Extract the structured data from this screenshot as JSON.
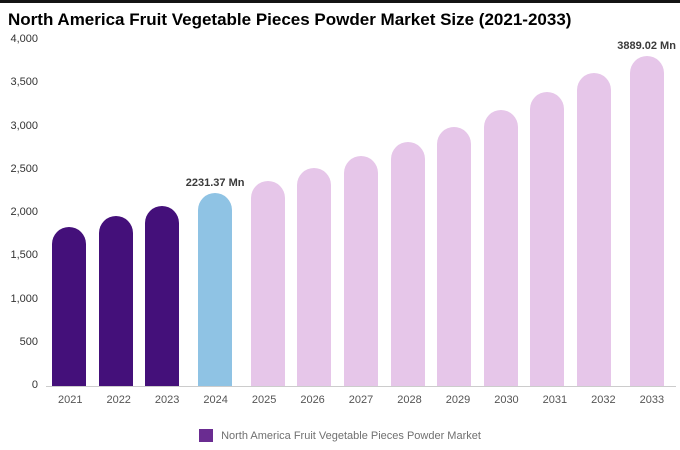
{
  "header": {
    "title": "North America Fruit Vegetable Pieces Powder Market Size (2021-2033)"
  },
  "legend": {
    "label": "North America Fruit Vegetable Pieces Powder Market",
    "swatch_color": "#6a2c91"
  },
  "colors": {
    "historical_bar": "#44107a",
    "current_year_bar": "#8fc3e4",
    "forecast_bar": "#e6c6e9",
    "axis_text": "#333333",
    "baseline": "#cccccc"
  },
  "chart_data": {
    "type": "bar",
    "title": "North America Fruit Vegetable Pieces Powder Market Size (2021-2033)",
    "categories": [
      "2021",
      "2022",
      "2023",
      "2024",
      "2025",
      "2026",
      "2027",
      "2028",
      "2029",
      "2030",
      "2031",
      "2032",
      "2033"
    ],
    "values": [
      1840,
      1965,
      2080,
      2231.37,
      2370,
      2520,
      2660,
      2820,
      3000,
      3190,
      3400,
      3620,
      3889.02
    ],
    "bar_colors": [
      "#44107a",
      "#44107a",
      "#44107a",
      "#8fc3e4",
      "#e6c6e9",
      "#e6c6e9",
      "#e6c6e9",
      "#e6c6e9",
      "#e6c6e9",
      "#e6c6e9",
      "#e6c6e9",
      "#e6c6e9",
      "#e6c6e9"
    ],
    "annotations": [
      {
        "category": "2024",
        "text": "2231.37 Mn"
      },
      {
        "category": "2033",
        "text": "3889.02 Mn"
      }
    ],
    "xlabel": "",
    "ylabel": "",
    "ylim": [
      0,
      4000
    ],
    "yticks": [
      0,
      500,
      1000,
      1500,
      2000,
      2500,
      3000,
      3500,
      4000
    ],
    "ytick_labels": [
      "0",
      "500",
      "1,000",
      "1,500",
      "2,000",
      "2,500",
      "3,000",
      "3,500",
      "4,000"
    ],
    "grid": false,
    "legend_position": "bottom",
    "legend_entries": [
      "North America Fruit Vegetable Pieces Powder Market"
    ]
  }
}
